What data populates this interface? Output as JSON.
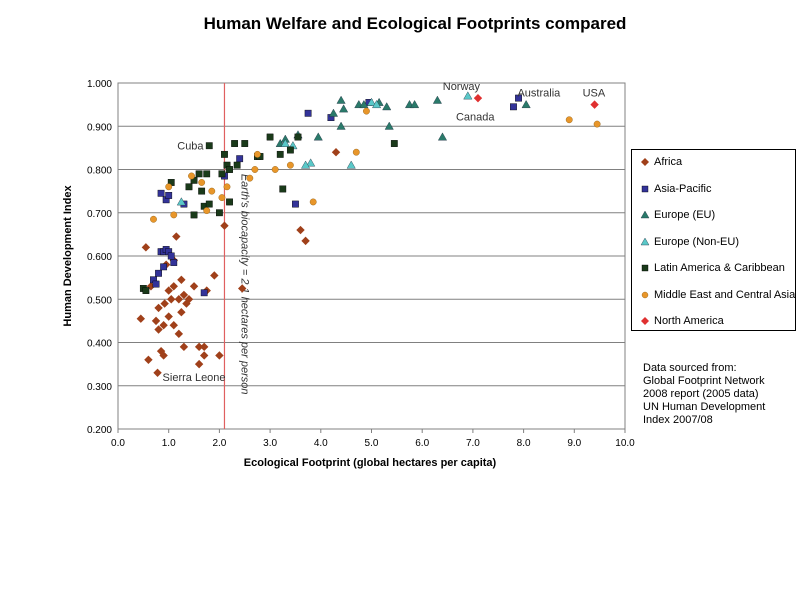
{
  "chart_data": {
    "type": "scatter",
    "title": "Human Welfare and Ecological Footprints compared",
    "xlabel": "Ecological Footprint (global hectares per capita)",
    "ylabel": "Human Development Index",
    "xlim": [
      0,
      10
    ],
    "ylim": [
      0.2,
      1.0
    ],
    "x_ticks": [
      "0.0",
      "1.0",
      "2.0",
      "3.0",
      "4.0",
      "5.0",
      "6.0",
      "7.0",
      "8.0",
      "9.0",
      "10.0"
    ],
    "y_ticks": [
      "0.200",
      "0.300",
      "0.400",
      "0.500",
      "0.600",
      "0.700",
      "0.800",
      "0.900",
      "1.000"
    ],
    "grid": "horizontal",
    "legend_position": "right",
    "reference_line": {
      "x": 2.1,
      "label": "Earth's biocapacity = 2.1 hectares per person",
      "color": "#e06060"
    },
    "annotations": [
      {
        "text": "Norway",
        "x": 6.8,
        "y": 0.97
      },
      {
        "text": "Australia",
        "x": 7.8,
        "y": 0.96
      },
      {
        "text": "USA",
        "x": 9.4,
        "y": 0.95
      },
      {
        "text": "Canada",
        "x": 7.1,
        "y": 0.95
      },
      {
        "text": "Cuba",
        "x": 1.8,
        "y": 0.855
      },
      {
        "text": "Sierra Leone",
        "x": 0.8,
        "y": 0.33
      }
    ],
    "series": [
      {
        "name": "Africa",
        "marker": "diamond",
        "color": "#a0401a",
        "points": [
          [
            0.45,
            0.455
          ],
          [
            0.55,
            0.62
          ],
          [
            0.6,
            0.36
          ],
          [
            0.65,
            0.53
          ],
          [
            0.75,
            0.45
          ],
          [
            0.78,
            0.33
          ],
          [
            0.8,
            0.43
          ],
          [
            0.8,
            0.48
          ],
          [
            0.85,
            0.38
          ],
          [
            0.9,
            0.37
          ],
          [
            0.9,
            0.44
          ],
          [
            0.92,
            0.49
          ],
          [
            0.95,
            0.58
          ],
          [
            1.0,
            0.46
          ],
          [
            1.0,
            0.52
          ],
          [
            1.05,
            0.5
          ],
          [
            1.1,
            0.44
          ],
          [
            1.1,
            0.53
          ],
          [
            1.1,
            0.59
          ],
          [
            1.15,
            0.645
          ],
          [
            1.2,
            0.5
          ],
          [
            1.2,
            0.42
          ],
          [
            1.25,
            0.47
          ],
          [
            1.3,
            0.39
          ],
          [
            1.3,
            0.51
          ],
          [
            1.35,
            0.49
          ],
          [
            1.4,
            0.5
          ],
          [
            1.5,
            0.53
          ],
          [
            1.6,
            0.35
          ],
          [
            1.6,
            0.39
          ],
          [
            1.7,
            0.37
          ],
          [
            1.7,
            0.39
          ],
          [
            1.75,
            0.52
          ],
          [
            1.9,
            0.555
          ],
          [
            2.0,
            0.37
          ],
          [
            2.1,
            0.67
          ],
          [
            2.45,
            0.525
          ],
          [
            3.6,
            0.66
          ],
          [
            3.7,
            0.635
          ],
          [
            4.3,
            0.84
          ],
          [
            1.25,
            0.545
          ]
        ]
      },
      {
        "name": "Asia-Pacific",
        "marker": "square",
        "color": "#333399",
        "points": [
          [
            0.7,
            0.545
          ],
          [
            0.75,
            0.535
          ],
          [
            0.8,
            0.56
          ],
          [
            0.85,
            0.745
          ],
          [
            0.85,
            0.61
          ],
          [
            0.9,
            0.61
          ],
          [
            0.9,
            0.575
          ],
          [
            0.95,
            0.73
          ],
          [
            0.95,
            0.615
          ],
          [
            1.0,
            0.74
          ],
          [
            1.0,
            0.61
          ],
          [
            1.05,
            0.6
          ],
          [
            1.1,
            0.585
          ],
          [
            1.3,
            0.72
          ],
          [
            1.7,
            0.515
          ],
          [
            2.1,
            0.785
          ],
          [
            2.4,
            0.825
          ],
          [
            3.5,
            0.72
          ],
          [
            3.75,
            0.93
          ],
          [
            4.2,
            0.92
          ],
          [
            4.95,
            0.955
          ],
          [
            7.8,
            0.945
          ],
          [
            7.9,
            0.965
          ]
        ]
      },
      {
        "name": "Europe (EU)",
        "marker": "triangle",
        "color": "#2a7a6a",
        "points": [
          [
            3.2,
            0.86
          ],
          [
            3.3,
            0.87
          ],
          [
            3.55,
            0.88
          ],
          [
            3.95,
            0.875
          ],
          [
            4.25,
            0.93
          ],
          [
            4.4,
            0.96
          ],
          [
            4.45,
            0.94
          ],
          [
            4.75,
            0.95
          ],
          [
            4.85,
            0.95
          ],
          [
            5.15,
            0.955
          ],
          [
            5.3,
            0.945
          ],
          [
            5.35,
            0.9
          ],
          [
            5.75,
            0.95
          ],
          [
            5.85,
            0.95
          ],
          [
            6.3,
            0.96
          ],
          [
            6.4,
            0.875
          ],
          [
            4.4,
            0.9
          ],
          [
            8.05,
            0.95
          ]
        ]
      },
      {
        "name": "Europe (Non-EU)",
        "marker": "triangle",
        "color": "#5ac8c8",
        "points": [
          [
            1.25,
            0.725
          ],
          [
            3.3,
            0.86
          ],
          [
            3.45,
            0.855
          ],
          [
            3.8,
            0.815
          ],
          [
            3.7,
            0.81
          ],
          [
            4.6,
            0.81
          ],
          [
            5.0,
            0.955
          ],
          [
            5.1,
            0.95
          ],
          [
            6.9,
            0.97
          ]
        ]
      },
      {
        "name": "Latin America & Caribbean",
        "marker": "square",
        "color": "#1a3a1a",
        "points": [
          [
            0.5,
            0.525
          ],
          [
            0.55,
            0.52
          ],
          [
            1.05,
            0.77
          ],
          [
            1.4,
            0.76
          ],
          [
            1.5,
            0.695
          ],
          [
            1.5,
            0.775
          ],
          [
            1.6,
            0.79
          ],
          [
            1.65,
            0.75
          ],
          [
            1.7,
            0.715
          ],
          [
            1.75,
            0.79
          ],
          [
            1.8,
            0.855
          ],
          [
            1.8,
            0.72
          ],
          [
            2.0,
            0.7
          ],
          [
            2.05,
            0.79
          ],
          [
            2.1,
            0.835
          ],
          [
            2.15,
            0.81
          ],
          [
            2.2,
            0.8
          ],
          [
            2.3,
            0.86
          ],
          [
            2.35,
            0.81
          ],
          [
            2.5,
            0.86
          ],
          [
            2.75,
            0.83
          ],
          [
            2.8,
            0.83
          ],
          [
            3.0,
            0.875
          ],
          [
            3.2,
            0.835
          ],
          [
            3.25,
            0.755
          ],
          [
            3.4,
            0.845
          ],
          [
            3.55,
            0.875
          ],
          [
            5.45,
            0.86
          ],
          [
            2.2,
            0.725
          ]
        ]
      },
      {
        "name": "Middle East and Central Asia",
        "marker": "circle",
        "color": "#e8962a",
        "points": [
          [
            0.7,
            0.685
          ],
          [
            1.0,
            0.76
          ],
          [
            1.1,
            0.695
          ],
          [
            1.45,
            0.785
          ],
          [
            1.65,
            0.77
          ],
          [
            1.75,
            0.705
          ],
          [
            1.85,
            0.75
          ],
          [
            2.05,
            0.735
          ],
          [
            2.15,
            0.76
          ],
          [
            2.6,
            0.78
          ],
          [
            2.7,
            0.8
          ],
          [
            2.75,
            0.835
          ],
          [
            3.1,
            0.8
          ],
          [
            3.4,
            0.81
          ],
          [
            3.85,
            0.725
          ],
          [
            4.7,
            0.84
          ],
          [
            4.9,
            0.935
          ],
          [
            8.9,
            0.915
          ],
          [
            9.45,
            0.905
          ]
        ]
      },
      {
        "name": "North America",
        "marker": "diamond",
        "color": "#e03030",
        "points": [
          [
            7.1,
            0.965
          ],
          [
            9.4,
            0.95
          ]
        ]
      }
    ],
    "source_note": [
      "Data sourced from:",
      "Global Footprint Network",
      "2008 report (2005 data)",
      "UN Human Development",
      "Index 2007/08"
    ]
  }
}
